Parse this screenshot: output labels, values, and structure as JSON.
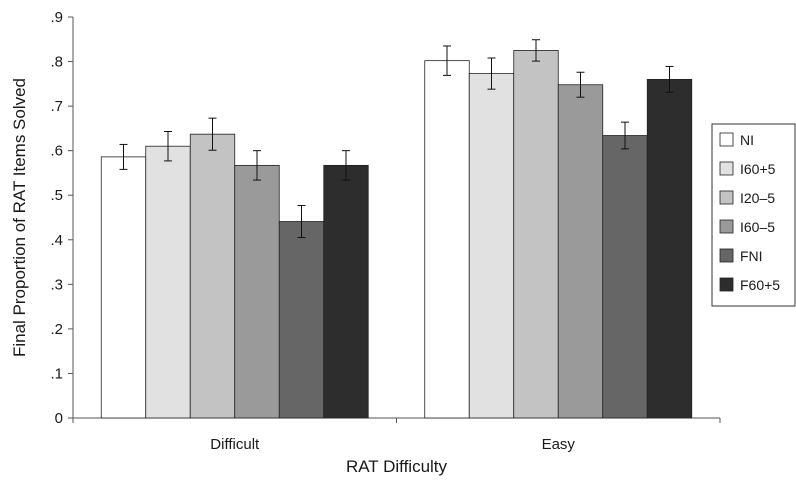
{
  "chart_data": {
    "type": "bar",
    "xlabel": "RAT Difficulty",
    "ylabel": "Final Proportion of RAT Items Solved",
    "ylim": [
      0,
      0.9
    ],
    "yticks": [
      0,
      0.1,
      0.2,
      0.3,
      0.4,
      0.5,
      0.6,
      0.7,
      0.8,
      0.9
    ],
    "ytick_labels": [
      "0",
      ".1",
      ".2",
      ".3",
      ".4",
      ".5",
      ".6",
      ".7",
      ".8",
      ".9"
    ],
    "categories": [
      "Difficult",
      "Easy"
    ],
    "legend_position": "right",
    "grid": false,
    "series": [
      {
        "name": "NI",
        "color": "#ffffff",
        "values": [
          0.586,
          0.802
        ],
        "errors": [
          0.028,
          0.033
        ]
      },
      {
        "name": "I60+5",
        "color": "#e1e1e1",
        "values": [
          0.61,
          0.773
        ],
        "errors": [
          0.033,
          0.035
        ]
      },
      {
        "name": "I20–5",
        "color": "#c3c3c3",
        "values": [
          0.637,
          0.825
        ],
        "errors": [
          0.036,
          0.024
        ]
      },
      {
        "name": "I60–5",
        "color": "#9a9a9a",
        "values": [
          0.567,
          0.748
        ],
        "errors": [
          0.033,
          0.028
        ]
      },
      {
        "name": "FNI",
        "color": "#666666",
        "values": [
          0.441,
          0.634
        ],
        "errors": [
          0.036,
          0.03
        ]
      },
      {
        "name": "F60+5",
        "color": "#2d2d2d",
        "values": [
          0.567,
          0.76
        ],
        "errors": [
          0.033,
          0.029
        ]
      }
    ]
  }
}
